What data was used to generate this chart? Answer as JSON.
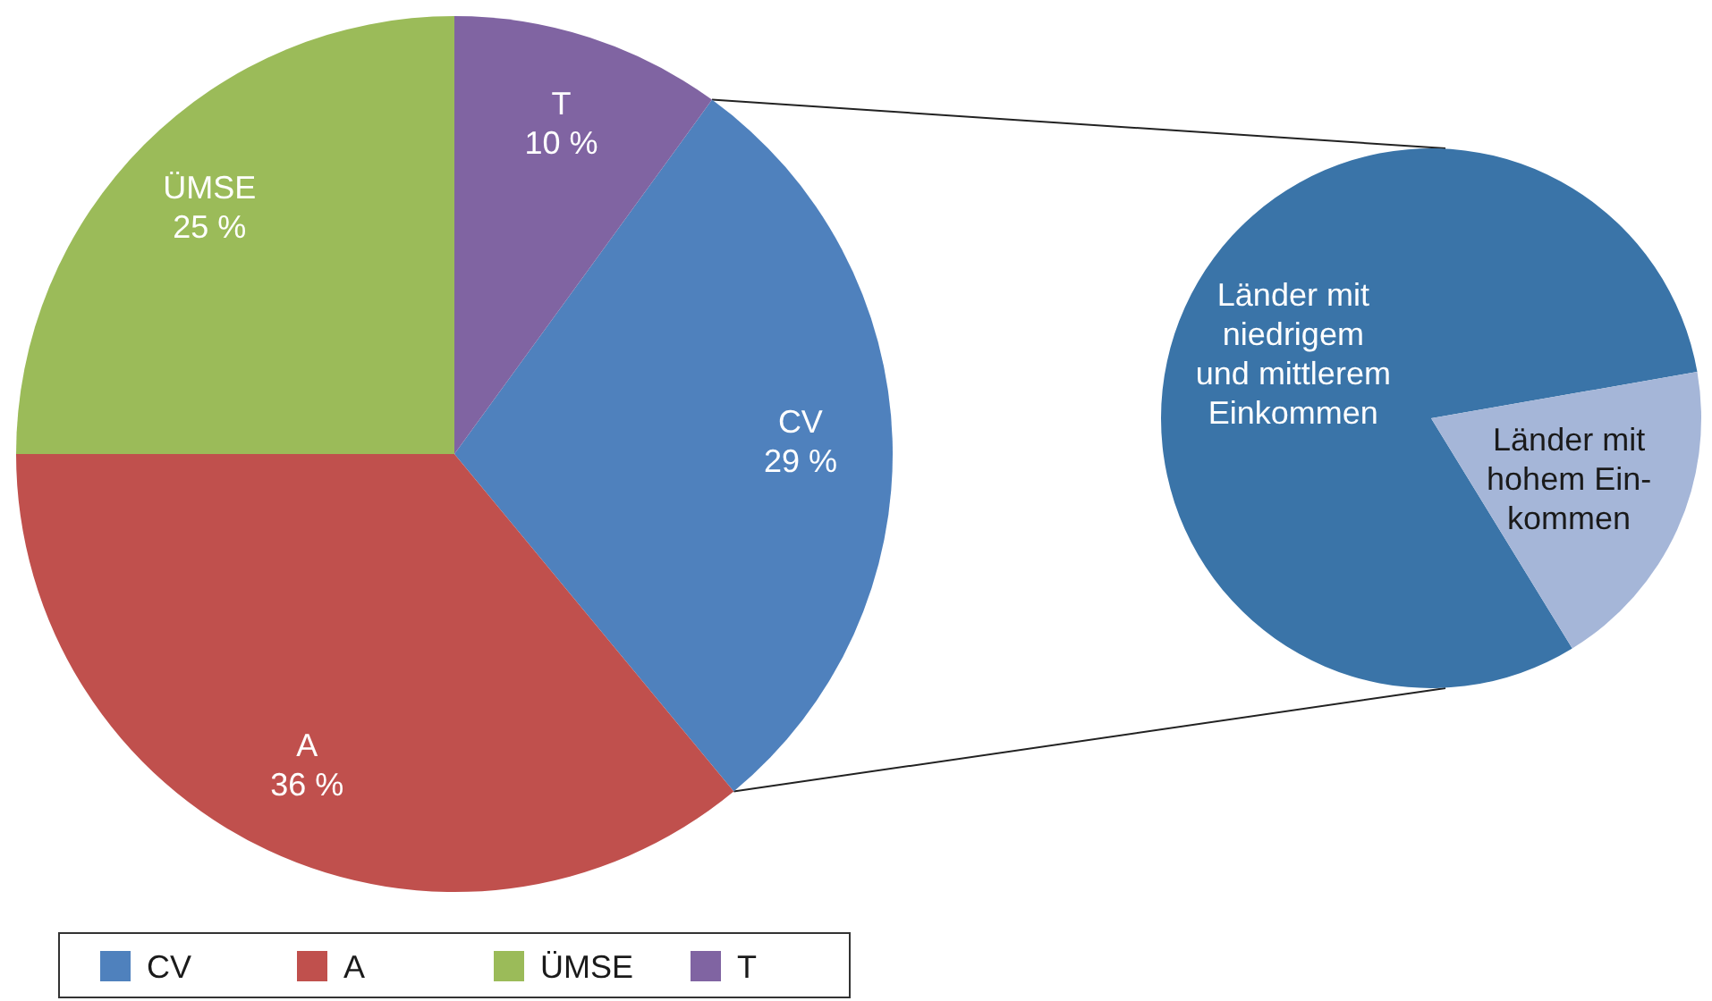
{
  "chart_data": [
    {
      "type": "pie",
      "categories": [
        "CV",
        "A",
        "ÜMSE",
        "T"
      ],
      "values": [
        29,
        36,
        25,
        10
      ],
      "colors": [
        "#4f81bd",
        "#c0504d",
        "#9bbb59",
        "#8064a2"
      ],
      "value_labels": [
        "29 %",
        "36 %",
        "25 %",
        "10 %"
      ],
      "legend": "bottom"
    },
    {
      "type": "pie",
      "categories": [
        "Länder mit\nniedrigem\nund mittlerem\nEinkommen",
        "Länder mit\nhohem Ein-\nkommen"
      ],
      "values": [
        81,
        19
      ],
      "colors": [
        "#3a74a8",
        "#a5b6d8"
      ]
    }
  ]
}
